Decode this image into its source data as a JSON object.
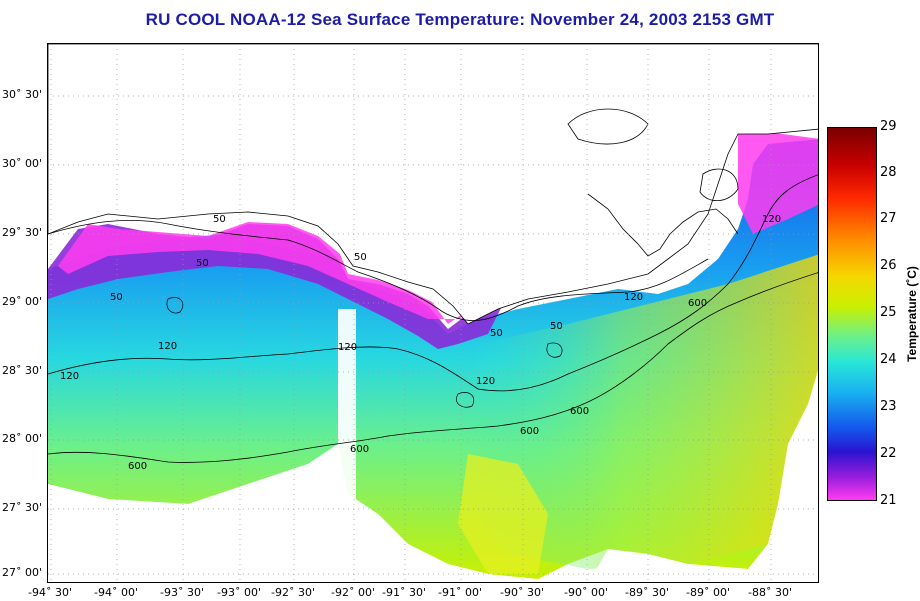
{
  "title": "RU COOL  NOAA-12  Sea Surface Temperature:  November 24, 2003 2153 GMT",
  "lat_labels": [
    "30˚ 30'",
    "30˚ 00'",
    "29˚ 30'",
    "29˚ 00'",
    "28˚ 30'",
    "28˚ 00'",
    "27˚ 30'",
    "27˚ 00'"
  ],
  "lon_labels": [
    "-94˚ 30'",
    "-94˚ 00'",
    "-93˚ 30'",
    "-93˚ 00'",
    "-92˚ 30'",
    "-92˚ 00'",
    "-91˚ 30'",
    "-91˚ 00'",
    "-90˚ 30'",
    "-90˚ 00'",
    "-89˚ 30'",
    "-89˚ 00'",
    "-88˚ 30'"
  ],
  "contour_labels": [
    "50",
    "50",
    "50",
    "50",
    "50",
    "50",
    "120",
    "120",
    "120",
    "120",
    "120",
    "120",
    "600",
    "600",
    "600",
    "600",
    "600"
  ],
  "colorbar": {
    "title": "Temperature (˚C)",
    "ticks": [
      "29",
      "28",
      "27",
      "26",
      "25",
      "24",
      "23",
      "22",
      "21"
    ],
    "min": 21,
    "max": 29
  },
  "colors": {
    "title": "#1c1ca8",
    "land": "#ffffff",
    "coast": "#000000",
    "cloud_mask": "#ffffff",
    "sst_21": "#ff3cf0",
    "sst_22": "#2a14d0",
    "sst_23": "#19b2f0",
    "sst_24": "#28e6d8",
    "sst_25": "#c9f000",
    "sst_26": "#f5d800"
  }
}
